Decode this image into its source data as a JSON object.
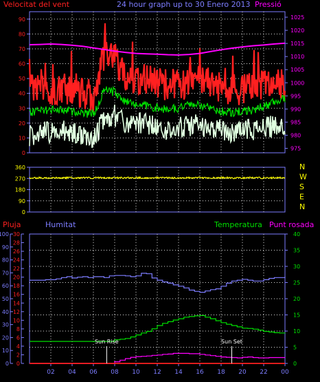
{
  "header": {
    "left_title": "Velocitat del vent",
    "center_title": "24 hour graph up to 30 Enero 2013",
    "right_title": "Pressió"
  },
  "colors": {
    "background": "#000000",
    "axis": "#7d7dff",
    "grid": "#dddddd",
    "wind_gust": "#ff2020",
    "wind_avg": "#00e000",
    "wind_speed": "#e0ffe0",
    "pressure": "#ff00ff",
    "direction": "#ffff00",
    "rain": "#ff2020",
    "humidity": "#7d7dff",
    "temperature": "#00e000",
    "dewpoint": "#ff00ff",
    "label_red": "#ff2020",
    "label_green": "#00e000",
    "label_blue": "#7d7dff",
    "label_magenta": "#ff00ff",
    "label_yellow": "#ffff00"
  },
  "x_ticks": [
    "02",
    "04",
    "06",
    "08",
    "10",
    "12",
    "14",
    "16",
    "18",
    "20",
    "22",
    "00"
  ],
  "chart_data": [
    {
      "type": "line",
      "panel": "wind",
      "left_axis": {
        "ticks": [
          0,
          10,
          20,
          30,
          40,
          50,
          60,
          70,
          80,
          90
        ],
        "ylim": [
          0,
          95
        ]
      },
      "right_axis": {
        "ticks": [
          975,
          980,
          985,
          990,
          995,
          1000,
          1005,
          1010,
          1015,
          1020,
          1025
        ],
        "ylim": [
          973.3,
          1027.1
        ]
      },
      "x_hours": [
        0,
        1,
        2,
        3,
        4,
        5,
        6,
        7,
        8,
        9,
        10,
        11,
        12,
        13,
        14,
        15,
        16,
        17,
        18,
        19,
        20,
        21,
        22,
        23,
        24
      ],
      "series": [
        {
          "name": "Velocitat del vent",
          "axis": "left",
          "role": "gust",
          "values": [
            42,
            42,
            43,
            42,
            44,
            40,
            38,
            66,
            65,
            50,
            50,
            49,
            47,
            46,
            46,
            47,
            49,
            47,
            44,
            42,
            43,
            44,
            46,
            50,
            44
          ]
        },
        {
          "name": "Velocitat del vent",
          "axis": "left",
          "role": "average",
          "values": [
            27,
            28,
            29,
            29,
            28,
            27,
            26,
            42,
            41,
            34,
            33,
            32,
            30,
            29,
            30,
            32,
            32,
            30,
            28,
            27,
            28,
            29,
            31,
            34,
            37
          ]
        },
        {
          "name": "Velocitat del vent",
          "axis": "left",
          "role": "speed",
          "values": [
            12,
            14,
            13,
            15,
            14,
            12,
            9,
            24,
            25,
            21,
            20,
            19,
            17,
            16,
            17,
            18,
            19,
            17,
            15,
            14,
            15,
            16,
            17,
            18,
            16
          ]
        },
        {
          "name": "Pressió",
          "axis": "right",
          "role": "pressure",
          "values": [
            1014.5,
            1014.6,
            1014.8,
            1014.6,
            1014.3,
            1013.9,
            1013.3,
            1012.7,
            1012.1,
            1011.6,
            1011.2,
            1011.0,
            1010.9,
            1010.7,
            1010.6,
            1010.8,
            1011.2,
            1011.9,
            1012.6,
            1013.2,
            1013.7,
            1014.1,
            1014.4,
            1014.8,
            1015.1
          ]
        }
      ]
    },
    {
      "type": "line",
      "panel": "direction",
      "left_axis": {
        "ticks": [
          0,
          90,
          180,
          270,
          360
        ],
        "ylim": [
          0,
          360
        ]
      },
      "right_labels": [
        "N",
        "W",
        "S",
        "E",
        "N"
      ],
      "x_hours": [
        0,
        24
      ],
      "series": [
        {
          "name": "direction",
          "role": "direction",
          "values": [
            275,
            275
          ]
        }
      ]
    },
    {
      "type": "line",
      "panel": "climate",
      "axes": {
        "rain": {
          "ticks": [
            0,
            10,
            20,
            30,
            40,
            50,
            60,
            70,
            80,
            90,
            100
          ],
          "ylim": [
            0,
            100
          ]
        },
        "humidity": {
          "ticks": [
            0,
            2,
            4,
            6,
            8,
            10,
            12,
            14,
            16,
            18,
            20,
            22,
            24,
            26,
            28,
            30
          ],
          "ylim": [
            0,
            30
          ]
        },
        "temperature": {
          "ticks": [
            0,
            5,
            10,
            15,
            20,
            25,
            30,
            35,
            40
          ],
          "ylim": [
            0,
            40
          ]
        }
      },
      "labels": {
        "rain": "Pluja",
        "humidity": "Humitat",
        "temperature": "Temperatura",
        "dewpoint": "Punt rosada"
      },
      "annotations": [
        {
          "text": "Sun Rise",
          "hour": 7.25
        },
        {
          "text": "Sun Set",
          "hour": 19.0
        }
      ],
      "x_hours": [
        0,
        0.5,
        1,
        1.5,
        2,
        2.5,
        3,
        3.5,
        4,
        4.5,
        5,
        5.5,
        6,
        6.5,
        7,
        7.5,
        8,
        8.5,
        9,
        9.5,
        10,
        10.5,
        11,
        11.5,
        12,
        12.5,
        13,
        13.5,
        14,
        14.5,
        15,
        15.5,
        16,
        16.5,
        17,
        17.5,
        18,
        18.5,
        19,
        19.5,
        20,
        20.5,
        21,
        21.5,
        22,
        22.5,
        23,
        23.5,
        24
      ],
      "series": [
        {
          "name": "Pluja",
          "axis": "rain",
          "role": "rain",
          "values": [
            0,
            0,
            0,
            0,
            0,
            0,
            0,
            0,
            0,
            0,
            0,
            0,
            0,
            0,
            0,
            0,
            0,
            0,
            0,
            0,
            0,
            0,
            0,
            0,
            0,
            0,
            0,
            0,
            0,
            0,
            0,
            0,
            0,
            0,
            0,
            0,
            0,
            0,
            0,
            0,
            0,
            0,
            0,
            0,
            0,
            0,
            0,
            0,
            0
          ]
        },
        {
          "name": "Humitat",
          "axis": "humidity",
          "role": "humidity",
          "values": [
            19.3,
            19.3,
            19.3,
            19.4,
            19.4,
            19.6,
            19.9,
            20.1,
            19.8,
            20.0,
            20.1,
            19.9,
            20.1,
            20.1,
            19.9,
            20.3,
            20.4,
            20.4,
            20.3,
            20.1,
            20.3,
            20.9,
            20.8,
            19.8,
            19.3,
            18.9,
            18.6,
            18.2,
            17.9,
            17.5,
            17.0,
            16.7,
            16.5,
            16.8,
            17.1,
            17.3,
            17.9,
            18.6,
            19.1,
            19.3,
            19.5,
            19.3,
            19.1,
            19.1,
            19.4,
            19.7,
            19.9,
            19.9,
            20.1
          ]
        },
        {
          "name": "Temperatura",
          "axis": "temperature",
          "role": "temperature",
          "values": [
            6.8,
            6.8,
            6.8,
            6.8,
            6.8,
            6.8,
            6.8,
            6.8,
            6.8,
            6.8,
            6.8,
            6.8,
            6.8,
            6.8,
            6.8,
            6.8,
            7.3,
            7.5,
            7.7,
            8.2,
            8.8,
            9.4,
            9.9,
            10.7,
            11.7,
            12.4,
            12.9,
            13.4,
            13.8,
            14.3,
            14.5,
            14.7,
            14.8,
            14.3,
            13.8,
            13.2,
            12.6,
            12.1,
            11.7,
            11.3,
            10.9,
            10.8,
            10.6,
            10.3,
            9.9,
            9.7,
            9.5,
            9.4,
            9.3
          ]
        },
        {
          "name": "Punt rosada",
          "axis": "temperature",
          "role": "dewpoint",
          "values": [
            0,
            0,
            0,
            0,
            0,
            0,
            0,
            0,
            0,
            0,
            0,
            0,
            0,
            0,
            0,
            0,
            0.5,
            1.0,
            1.5,
            1.9,
            2.1,
            2.2,
            2.3,
            2.5,
            2.6,
            2.8,
            2.9,
            3.1,
            3.1,
            3.1,
            3.0,
            3.0,
            2.8,
            2.6,
            2.4,
            2.2,
            2.0,
            1.9,
            1.8,
            1.7,
            1.9,
            2.0,
            1.8,
            1.7,
            1.7,
            1.8,
            1.8,
            1.8,
            1.9
          ]
        }
      ]
    }
  ]
}
